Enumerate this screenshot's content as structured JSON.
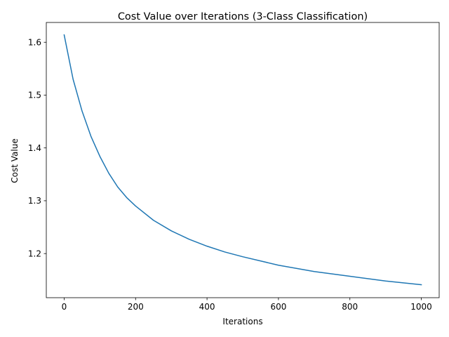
{
  "chart_data": {
    "type": "line",
    "title": "Cost Value over Iterations (3-Class Classification)",
    "xlabel": "Iterations",
    "ylabel": "Cost Value",
    "xlim": [
      -50,
      1050
    ],
    "ylim": [
      1.1165,
      1.6375
    ],
    "x_ticks": [
      0,
      200,
      400,
      600,
      800,
      1000
    ],
    "x_tick_labels": [
      "0",
      "200",
      "400",
      "600",
      "800",
      "1000"
    ],
    "y_ticks": [
      1.2,
      1.3,
      1.4,
      1.5,
      1.6
    ],
    "y_tick_labels": [
      "1.2",
      "1.3",
      "1.4",
      "1.5",
      "1.6"
    ],
    "grid": false,
    "series": [
      {
        "color": "#1f77b4",
        "x": [
          0,
          25,
          50,
          75,
          100,
          125,
          150,
          175,
          200,
          250,
          300,
          350,
          400,
          450,
          500,
          600,
          700,
          800,
          900,
          1000
        ],
        "y": [
          1.614,
          1.53,
          1.47,
          1.422,
          1.384,
          1.352,
          1.326,
          1.306,
          1.29,
          1.263,
          1.243,
          1.227,
          1.214,
          1.203,
          1.194,
          1.178,
          1.166,
          1.157,
          1.148,
          1.141
        ]
      }
    ]
  }
}
